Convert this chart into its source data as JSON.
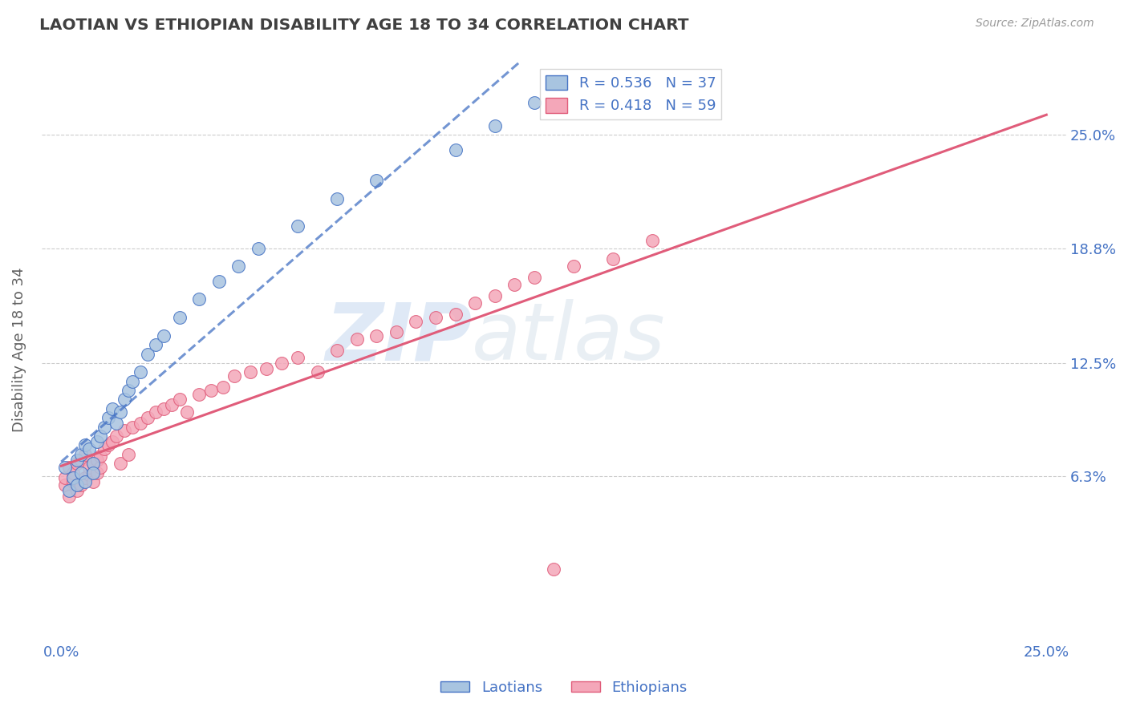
{
  "title": "LAOTIAN VS ETHIOPIAN DISABILITY AGE 18 TO 34 CORRELATION CHART",
  "source": "Source: ZipAtlas.com",
  "ylabel": "Disability Age 18 to 34",
  "laotian_R": "R = 0.536",
  "laotian_N": "N = 37",
  "ethiopian_R": "R = 0.418",
  "ethiopian_N": "N = 59",
  "laotian_color": "#a8c4e0",
  "laotian_line_color": "#4472c4",
  "ethiopian_color": "#f4a7b9",
  "ethiopian_line_color": "#e05c7a",
  "laotian_x": [
    0.001,
    0.002,
    0.003,
    0.004,
    0.004,
    0.005,
    0.005,
    0.006,
    0.006,
    0.007,
    0.008,
    0.008,
    0.009,
    0.01,
    0.011,
    0.012,
    0.013,
    0.014,
    0.015,
    0.016,
    0.017,
    0.018,
    0.02,
    0.022,
    0.024,
    0.026,
    0.03,
    0.035,
    0.04,
    0.045,
    0.05,
    0.06,
    0.07,
    0.08,
    0.1,
    0.11,
    0.12
  ],
  "laotian_y": [
    0.068,
    0.055,
    0.062,
    0.058,
    0.072,
    0.065,
    0.075,
    0.06,
    0.08,
    0.078,
    0.07,
    0.065,
    0.082,
    0.085,
    0.09,
    0.095,
    0.1,
    0.092,
    0.098,
    0.105,
    0.11,
    0.115,
    0.12,
    0.13,
    0.135,
    0.14,
    0.15,
    0.16,
    0.17,
    0.178,
    0.188,
    0.2,
    0.215,
    0.225,
    0.242,
    0.255,
    0.268
  ],
  "ethiopian_x": [
    0.001,
    0.001,
    0.002,
    0.002,
    0.003,
    0.003,
    0.004,
    0.004,
    0.005,
    0.005,
    0.006,
    0.006,
    0.007,
    0.007,
    0.008,
    0.008,
    0.009,
    0.009,
    0.01,
    0.01,
    0.011,
    0.012,
    0.013,
    0.014,
    0.015,
    0.016,
    0.017,
    0.018,
    0.02,
    0.022,
    0.024,
    0.026,
    0.028,
    0.03,
    0.032,
    0.035,
    0.038,
    0.041,
    0.044,
    0.048,
    0.052,
    0.056,
    0.06,
    0.065,
    0.07,
    0.075,
    0.08,
    0.085,
    0.09,
    0.095,
    0.1,
    0.105,
    0.11,
    0.115,
    0.12,
    0.13,
    0.14,
    0.15,
    0.125
  ],
  "ethiopian_y": [
    0.058,
    0.062,
    0.052,
    0.068,
    0.06,
    0.065,
    0.055,
    0.07,
    0.058,
    0.072,
    0.062,
    0.075,
    0.064,
    0.068,
    0.06,
    0.07,
    0.065,
    0.072,
    0.068,
    0.074,
    0.078,
    0.08,
    0.082,
    0.085,
    0.07,
    0.088,
    0.075,
    0.09,
    0.092,
    0.095,
    0.098,
    0.1,
    0.102,
    0.105,
    0.098,
    0.108,
    0.11,
    0.112,
    0.118,
    0.12,
    0.122,
    0.125,
    0.128,
    0.12,
    0.132,
    0.138,
    0.14,
    0.142,
    0.148,
    0.15,
    0.152,
    0.158,
    0.162,
    0.168,
    0.172,
    0.178,
    0.182,
    0.192,
    0.012
  ],
  "watermark_zip": "ZIP",
  "watermark_atlas": "atlas",
  "bg_color": "#ffffff",
  "grid_color": "#cccccc",
  "title_color": "#404040",
  "axis_label_color": "#4472c4",
  "xlim": [
    -0.005,
    0.255
  ],
  "ylim": [
    -0.025,
    0.29
  ],
  "y_tick_vals": [
    0.063,
    0.125,
    0.188,
    0.25
  ],
  "y_tick_labels": [
    "6.3%",
    "12.5%",
    "18.8%",
    "25.0%"
  ],
  "lao_line_x0": 0.0,
  "lao_line_x1": 0.25,
  "eth_line_x0": 0.0,
  "eth_line_x1": 0.25
}
